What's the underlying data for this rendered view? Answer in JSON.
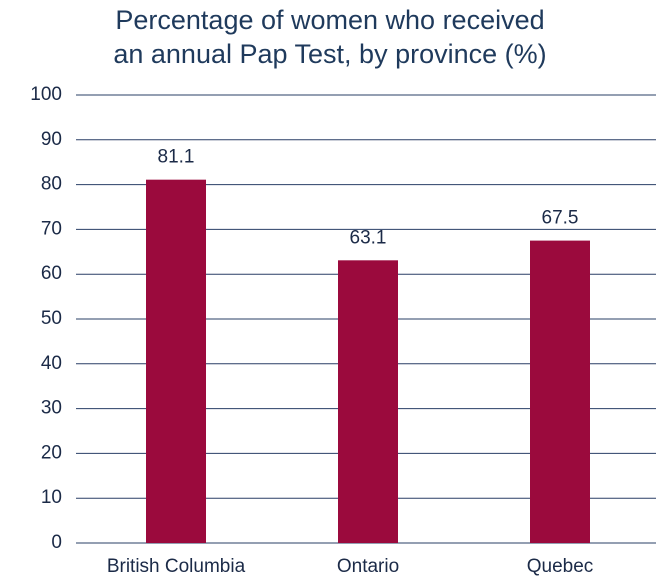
{
  "chart_data": {
    "type": "bar",
    "title": [
      "Percentage of women who received",
      "an annual Pap Test, by province (%)"
    ],
    "categories": [
      "British Columbia",
      "Ontario",
      "Quebec"
    ],
    "values": [
      81.1,
      63.1,
      67.5
    ],
    "color": "#9b0a3d",
    "ylim": [
      0,
      100
    ],
    "yticks": [
      0,
      10,
      20,
      30,
      40,
      50,
      60,
      70,
      80,
      90,
      100
    ],
    "grid": true
  }
}
